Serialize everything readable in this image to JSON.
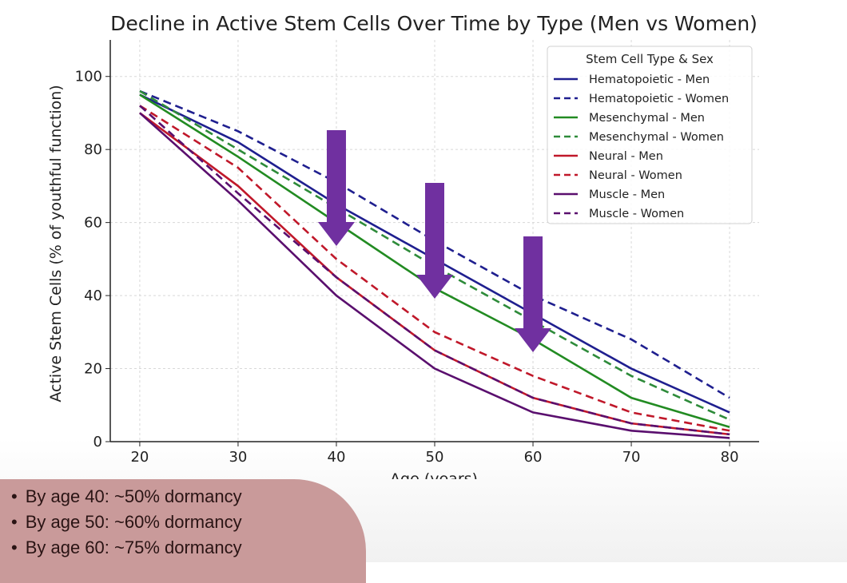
{
  "chart_data": {
    "type": "line",
    "title": "Decline in Active Stem Cells Over Time by Type (Men vs Women)",
    "xlabel": "Age (years)",
    "ylabel": "Active Stem Cells (% of youthful function)",
    "x": [
      20,
      30,
      40,
      50,
      60,
      70,
      80
    ],
    "xticks": [
      "20",
      "30",
      "40",
      "50",
      "60",
      "70",
      "80"
    ],
    "yticks": [
      "0",
      "20",
      "40",
      "60",
      "80",
      "100"
    ],
    "xlim": [
      17,
      83
    ],
    "ylim": [
      0,
      110
    ],
    "grid": true,
    "legend": {
      "title": "Stem Cell Type & Sex",
      "placement": "top-right"
    },
    "series": [
      {
        "name": "Hematopoietic - Men",
        "color": "#1f1f8f",
        "style": "solid",
        "values": [
          95,
          82,
          65,
          50,
          35,
          20,
          8
        ]
      },
      {
        "name": "Hematopoietic - Women",
        "color": "#1f1f8f",
        "style": "dashed",
        "values": [
          96,
          85,
          71,
          55,
          40,
          28,
          12
        ]
      },
      {
        "name": "Mesenchymal - Men",
        "color": "#228b22",
        "style": "solid",
        "values": [
          95,
          78,
          60,
          42,
          28,
          12,
          4
        ]
      },
      {
        "name": "Mesenchymal - Women",
        "color": "#2e8b3a",
        "style": "dashed",
        "values": [
          96,
          80,
          64,
          48,
          33,
          18,
          6
        ]
      },
      {
        "name": "Neural - Men",
        "color": "#c0182a",
        "style": "solid",
        "values": [
          90,
          70,
          45,
          25,
          12,
          5,
          2
        ]
      },
      {
        "name": "Neural - Women",
        "color": "#c0182a",
        "style": "dashed",
        "values": [
          92,
          75,
          50,
          30,
          18,
          8,
          3
        ]
      },
      {
        "name": "Muscle - Men",
        "color": "#5a0f6e",
        "style": "solid",
        "values": [
          90,
          66,
          40,
          20,
          8,
          3,
          1
        ]
      },
      {
        "name": "Muscle - Women",
        "color": "#5a0f6e",
        "style": "dashed",
        "values": [
          92,
          68,
          45,
          25,
          12,
          5,
          2
        ]
      }
    ],
    "annotations": {
      "arrow_color": "#7030a0",
      "arrows_at_age": [
        40,
        50,
        60
      ]
    }
  },
  "notes": [
    "By age 40: ~50% dormancy",
    "By age 50: ~60% dormancy",
    "By age 60: ~75% dormancy"
  ]
}
